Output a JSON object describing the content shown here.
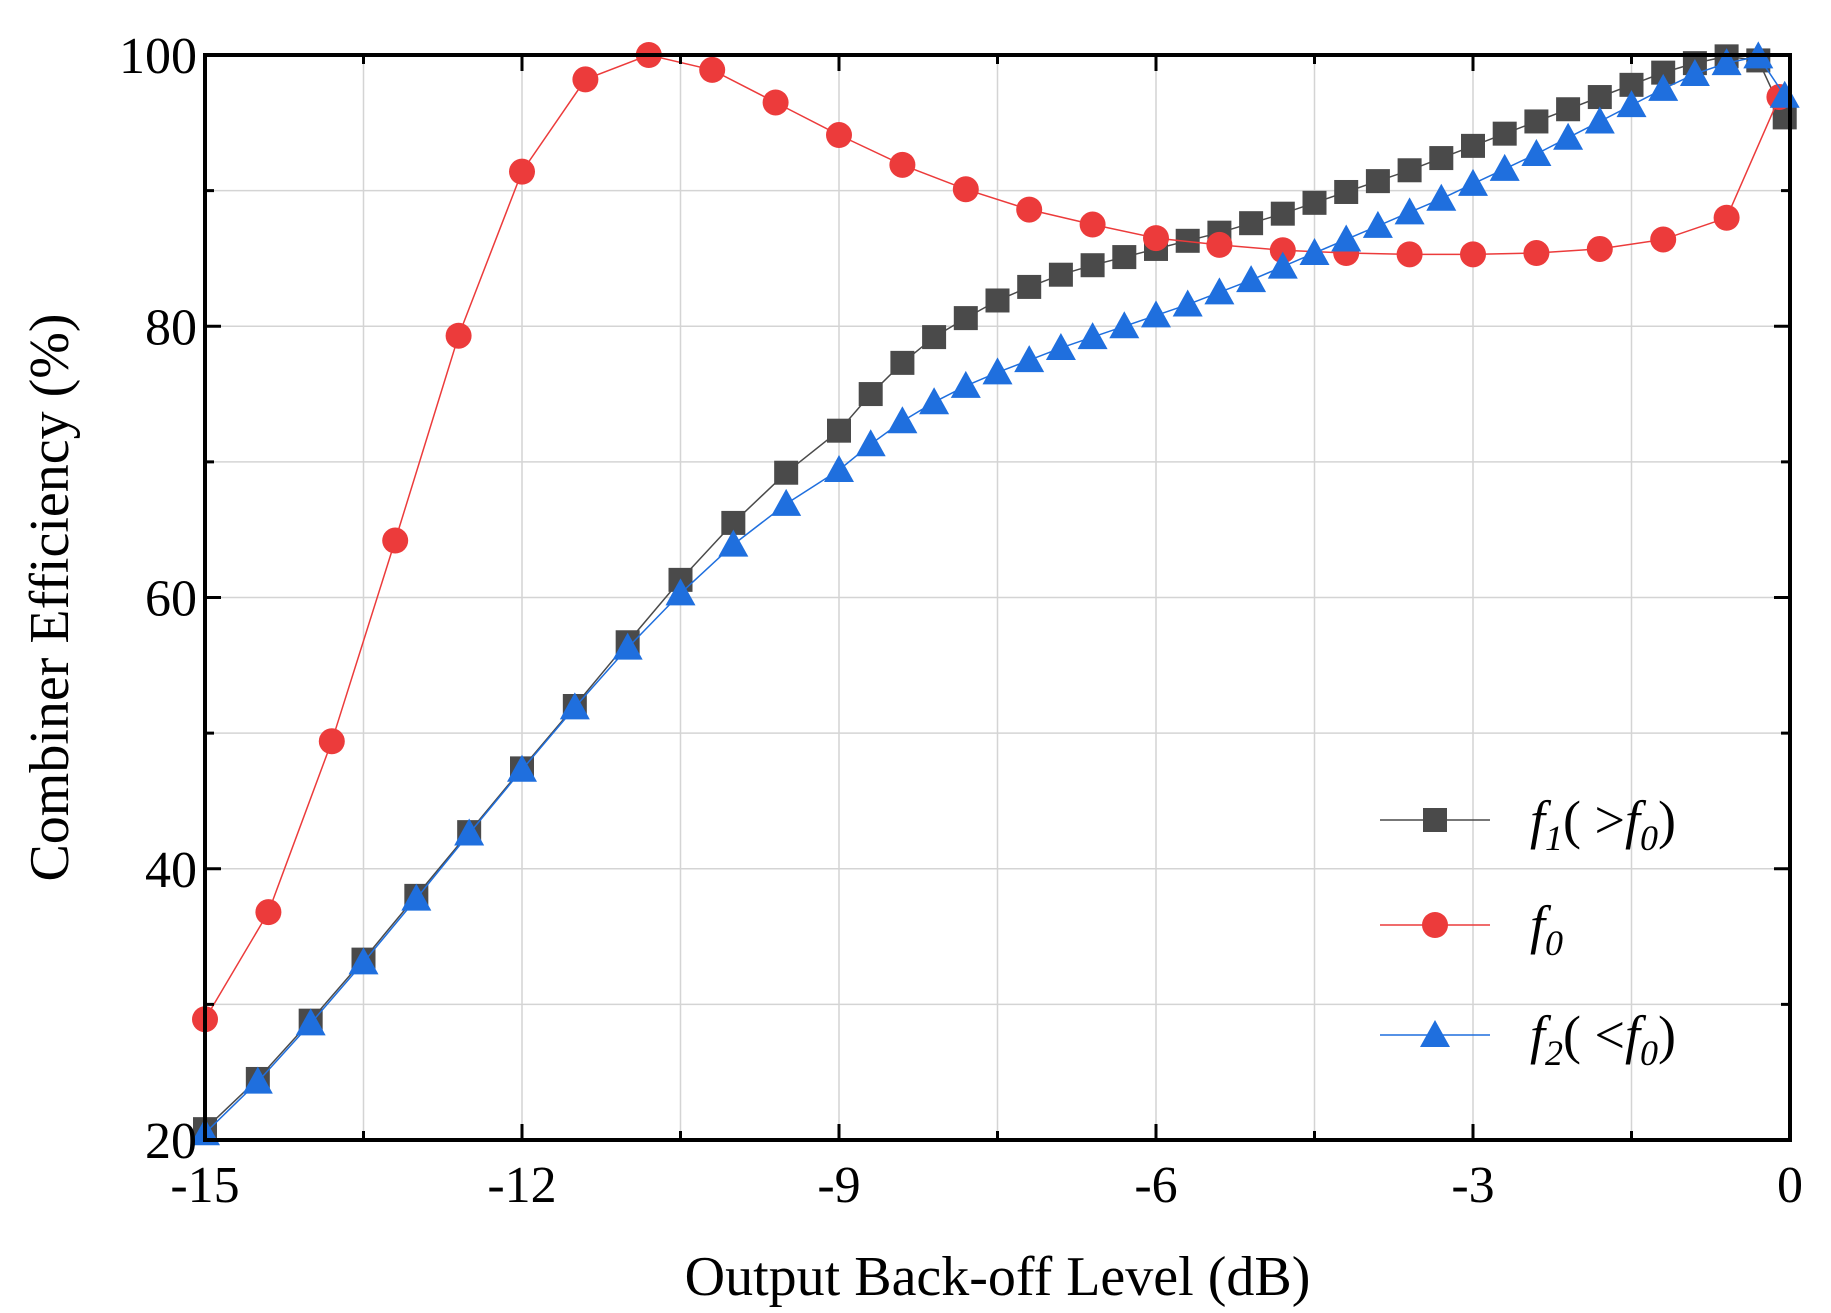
{
  "chart_data": {
    "type": "line",
    "title": "",
    "xlabel": "Output Back-off  Level (dB)",
    "ylabel": "Combiner  Efficiency (%)",
    "xlim": [
      -15,
      0
    ],
    "ylim": [
      20,
      100
    ],
    "xticks": [
      -15,
      -12,
      -9,
      -6,
      -3,
      0
    ],
    "yticks": [
      20,
      40,
      60,
      80,
      100
    ],
    "xtick_labels": [
      "-15",
      "-12",
      "-9",
      "-6",
      "-3",
      "0"
    ],
    "ytick_labels": [
      "20",
      "40",
      "60",
      "80",
      "100"
    ],
    "grid": true,
    "legend_position": "bottom-right",
    "series": [
      {
        "name": "f1( >f0)",
        "legend": {
          "base": "f",
          "sub": "1",
          "rest": "( >",
          "base2": "f",
          "sub2": "0",
          "close": ")"
        },
        "marker": "square",
        "color": "#4a4a4a",
        "x": [
          -15,
          -14.5,
          -14,
          -13.5,
          -13,
          -12.5,
          -12,
          -11.5,
          -11,
          -10.5,
          -10,
          -9.5,
          -9,
          -8.7,
          -8.4,
          -8.1,
          -7.8,
          -7.5,
          -7.2,
          -6.9,
          -6.6,
          -6.3,
          -6,
          -5.7,
          -5.4,
          -5.1,
          -4.8,
          -4.5,
          -4.2,
          -3.9,
          -3.6,
          -3.3,
          -3,
          -2.7,
          -2.4,
          -2.1,
          -1.8,
          -1.5,
          -1.2,
          -0.9,
          -0.6,
          -0.3,
          -0.05
        ],
        "y": [
          20.8,
          24.5,
          28.8,
          33.3,
          38.0,
          42.7,
          47.4,
          52.0,
          56.7,
          61.3,
          65.5,
          69.2,
          72.3,
          75.0,
          77.3,
          79.2,
          80.6,
          81.9,
          82.9,
          83.8,
          84.5,
          85.1,
          85.7,
          86.3,
          86.9,
          87.6,
          88.3,
          89.1,
          89.9,
          90.7,
          91.5,
          92.4,
          93.3,
          94.2,
          95.1,
          96.0,
          96.9,
          97.8,
          98.7,
          99.4,
          99.9,
          99.6,
          95.4
        ]
      },
      {
        "name": "f0",
        "legend": {
          "base": "f",
          "sub": "0",
          "rest": "",
          "base2": "",
          "sub2": "",
          "close": ""
        },
        "marker": "circle",
        "color": "#ec3b3b",
        "x": [
          -15,
          -14.4,
          -13.8,
          -13.2,
          -12.6,
          -12,
          -11.4,
          -10.8,
          -10.2,
          -9.6,
          -9.0,
          -8.4,
          -7.8,
          -7.2,
          -6.6,
          -6.0,
          -5.4,
          -4.8,
          -4.2,
          -3.6,
          -3.0,
          -2.4,
          -1.8,
          -1.2,
          -0.6,
          -0.1
        ],
        "y": [
          28.9,
          36.8,
          49.4,
          64.2,
          79.3,
          91.4,
          98.2,
          100.0,
          98.9,
          96.5,
          94.1,
          91.9,
          90.1,
          88.6,
          87.5,
          86.5,
          86.0,
          85.6,
          85.4,
          85.3,
          85.3,
          85.4,
          85.7,
          86.4,
          88.0,
          96.9
        ]
      },
      {
        "name": "f2( <f0)",
        "legend": {
          "base": "f",
          "sub": "2",
          "rest": "( <",
          "base2": "f",
          "sub2": "0",
          "close": ")"
        },
        "marker": "triangle",
        "color": "#1f6fde",
        "x": [
          -15,
          -14.5,
          -14,
          -13.5,
          -13,
          -12.5,
          -12,
          -11.5,
          -11,
          -10.5,
          -10,
          -9.5,
          -9,
          -8.7,
          -8.4,
          -8.1,
          -7.8,
          -7.5,
          -7.2,
          -6.9,
          -6.6,
          -6.3,
          -6,
          -5.7,
          -5.4,
          -5.1,
          -4.8,
          -4.5,
          -4.2,
          -3.9,
          -3.6,
          -3.3,
          -3,
          -2.7,
          -2.4,
          -2.1,
          -1.8,
          -1.5,
          -1.2,
          -0.9,
          -0.6,
          -0.3,
          -0.05
        ],
        "y": [
          20.5,
          24.3,
          28.6,
          33.1,
          37.8,
          42.6,
          47.3,
          51.9,
          56.3,
          60.3,
          63.9,
          66.9,
          69.4,
          71.3,
          73.0,
          74.4,
          75.6,
          76.6,
          77.5,
          78.4,
          79.2,
          80.0,
          80.8,
          81.6,
          82.5,
          83.4,
          84.4,
          85.4,
          86.4,
          87.4,
          88.4,
          89.4,
          90.5,
          91.6,
          92.7,
          93.9,
          95.1,
          96.3,
          97.5,
          98.6,
          99.4,
          99.9,
          97.0
        ]
      }
    ]
  }
}
